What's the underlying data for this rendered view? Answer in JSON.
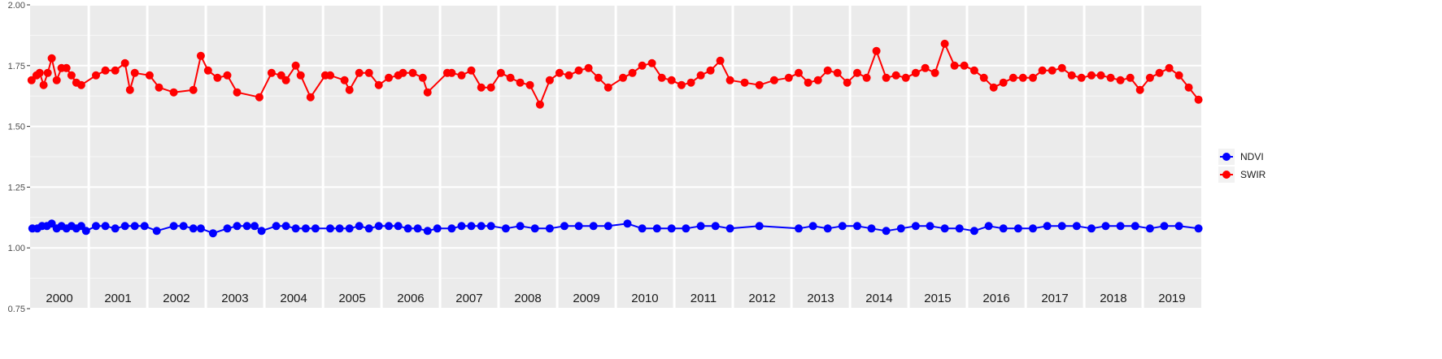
{
  "chart_data": {
    "type": "line",
    "title": "",
    "xlabel": "",
    "ylabel": "",
    "ylim": [
      0.75,
      2.0
    ],
    "yticks": [
      0.75,
      1.0,
      1.25,
      1.5,
      1.75,
      2.0
    ],
    "ytick_labels": [
      "0.75",
      "1.00",
      "1.25",
      "1.50",
      "1.75",
      "2.00"
    ],
    "grid": true,
    "legend_position": "right",
    "x_axis": "date by year",
    "years": [
      "2000",
      "2001",
      "2002",
      "2003",
      "2004",
      "2005",
      "2006",
      "2007",
      "2008",
      "2009",
      "2010",
      "2011",
      "2012",
      "2013",
      "2014",
      "2015",
      "2016",
      "2017",
      "2018",
      "2019"
    ],
    "series": [
      {
        "name": "NDVI",
        "color": "#0000ff",
        "points": [
          [
            "2000-01-15",
            1.08
          ],
          [
            "2000-02-15",
            1.08
          ],
          [
            "2000-03-15",
            1.09
          ],
          [
            "2000-04-15",
            1.09
          ],
          [
            "2000-05-15",
            1.1
          ],
          [
            "2000-06-15",
            1.08
          ],
          [
            "2000-07-15",
            1.09
          ],
          [
            "2000-08-15",
            1.08
          ],
          [
            "2000-09-15",
            1.09
          ],
          [
            "2000-10-15",
            1.08
          ],
          [
            "2000-11-15",
            1.09
          ],
          [
            "2000-12-15",
            1.07
          ],
          [
            "2001-02-15",
            1.09
          ],
          [
            "2001-04-15",
            1.09
          ],
          [
            "2001-06-15",
            1.08
          ],
          [
            "2001-08-15",
            1.09
          ],
          [
            "2001-10-15",
            1.09
          ],
          [
            "2001-12-15",
            1.09
          ],
          [
            "2002-03-01",
            1.07
          ],
          [
            "2002-06-15",
            1.09
          ],
          [
            "2002-08-15",
            1.09
          ],
          [
            "2002-10-15",
            1.08
          ],
          [
            "2002-12-01",
            1.08
          ],
          [
            "2003-02-15",
            1.06
          ],
          [
            "2003-05-15",
            1.08
          ],
          [
            "2003-07-15",
            1.09
          ],
          [
            "2003-09-15",
            1.09
          ],
          [
            "2003-11-01",
            1.09
          ],
          [
            "2003-12-15",
            1.07
          ],
          [
            "2004-03-15",
            1.09
          ],
          [
            "2004-05-15",
            1.09
          ],
          [
            "2004-07-15",
            1.08
          ],
          [
            "2004-09-15",
            1.08
          ],
          [
            "2004-11-15",
            1.08
          ],
          [
            "2005-02-15",
            1.08
          ],
          [
            "2005-04-15",
            1.08
          ],
          [
            "2005-06-15",
            1.08
          ],
          [
            "2005-08-15",
            1.09
          ],
          [
            "2005-10-15",
            1.08
          ],
          [
            "2005-12-15",
            1.09
          ],
          [
            "2006-02-15",
            1.09
          ],
          [
            "2006-04-15",
            1.09
          ],
          [
            "2006-06-15",
            1.08
          ],
          [
            "2006-08-15",
            1.08
          ],
          [
            "2006-10-15",
            1.07
          ],
          [
            "2006-12-15",
            1.08
          ],
          [
            "2007-03-15",
            1.08
          ],
          [
            "2007-05-15",
            1.09
          ],
          [
            "2007-07-15",
            1.09
          ],
          [
            "2007-09-15",
            1.09
          ],
          [
            "2007-11-15",
            1.09
          ],
          [
            "2008-02-15",
            1.08
          ],
          [
            "2008-05-15",
            1.09
          ],
          [
            "2008-08-15",
            1.08
          ],
          [
            "2008-11-15",
            1.08
          ],
          [
            "2009-02-15",
            1.09
          ],
          [
            "2009-05-15",
            1.09
          ],
          [
            "2009-08-15",
            1.09
          ],
          [
            "2009-11-15",
            1.09
          ],
          [
            "2010-03-15",
            1.1
          ],
          [
            "2010-06-15",
            1.08
          ],
          [
            "2010-09-15",
            1.08
          ],
          [
            "2010-12-15",
            1.08
          ],
          [
            "2011-03-15",
            1.08
          ],
          [
            "2011-06-15",
            1.09
          ],
          [
            "2011-09-15",
            1.09
          ],
          [
            "2011-12-15",
            1.08
          ],
          [
            "2012-06-15",
            1.09
          ],
          [
            "2013-02-15",
            1.08
          ],
          [
            "2013-05-15",
            1.09
          ],
          [
            "2013-08-15",
            1.08
          ],
          [
            "2013-11-15",
            1.09
          ],
          [
            "2014-02-15",
            1.09
          ],
          [
            "2014-05-15",
            1.08
          ],
          [
            "2014-08-15",
            1.07
          ],
          [
            "2014-11-15",
            1.08
          ],
          [
            "2015-02-15",
            1.09
          ],
          [
            "2015-05-15",
            1.09
          ],
          [
            "2015-08-15",
            1.08
          ],
          [
            "2015-11-15",
            1.08
          ],
          [
            "2016-02-15",
            1.07
          ],
          [
            "2016-05-15",
            1.09
          ],
          [
            "2016-08-15",
            1.08
          ],
          [
            "2016-11-15",
            1.08
          ],
          [
            "2017-02-15",
            1.08
          ],
          [
            "2017-05-15",
            1.09
          ],
          [
            "2017-08-15",
            1.09
          ],
          [
            "2017-11-15",
            1.09
          ],
          [
            "2018-02-15",
            1.08
          ],
          [
            "2018-05-15",
            1.09
          ],
          [
            "2018-08-15",
            1.09
          ],
          [
            "2018-11-15",
            1.09
          ],
          [
            "2019-02-15",
            1.08
          ],
          [
            "2019-05-15",
            1.09
          ],
          [
            "2019-08-15",
            1.09
          ],
          [
            "2019-12-15",
            1.08
          ]
        ]
      },
      {
        "name": "SWIR",
        "color": "#ff0000",
        "points": [
          [
            "2000-01-10",
            1.69
          ],
          [
            "2000-02-10",
            1.71
          ],
          [
            "2000-03-01",
            1.72
          ],
          [
            "2000-03-25",
            1.67
          ],
          [
            "2000-04-20",
            1.72
          ],
          [
            "2000-05-15",
            1.78
          ],
          [
            "2000-06-15",
            1.69
          ],
          [
            "2000-07-15",
            1.74
          ],
          [
            "2000-08-15",
            1.74
          ],
          [
            "2000-09-15",
            1.71
          ],
          [
            "2000-10-15",
            1.68
          ],
          [
            "2000-11-15",
            1.67
          ],
          [
            "2001-02-15",
            1.71
          ],
          [
            "2001-04-15",
            1.73
          ],
          [
            "2001-06-15",
            1.73
          ],
          [
            "2001-08-15",
            1.76
          ],
          [
            "2001-09-15",
            1.65
          ],
          [
            "2001-10-15",
            1.72
          ],
          [
            "2002-01-15",
            1.71
          ],
          [
            "2002-03-15",
            1.66
          ],
          [
            "2002-06-15",
            1.64
          ],
          [
            "2002-10-15",
            1.65
          ],
          [
            "2002-12-01",
            1.79
          ],
          [
            "2003-01-15",
            1.73
          ],
          [
            "2003-03-15",
            1.7
          ],
          [
            "2003-05-15",
            1.71
          ],
          [
            "2003-07-15",
            1.64
          ],
          [
            "2003-12-01",
            1.62
          ],
          [
            "2004-02-15",
            1.72
          ],
          [
            "2004-04-15",
            1.71
          ],
          [
            "2004-05-15",
            1.69
          ],
          [
            "2004-07-15",
            1.75
          ],
          [
            "2004-08-15",
            1.71
          ],
          [
            "2004-10-15",
            1.62
          ],
          [
            "2005-01-15",
            1.71
          ],
          [
            "2005-02-15",
            1.71
          ],
          [
            "2005-05-15",
            1.69
          ],
          [
            "2005-06-15",
            1.65
          ],
          [
            "2005-08-15",
            1.72
          ],
          [
            "2005-10-15",
            1.72
          ],
          [
            "2005-12-15",
            1.67
          ],
          [
            "2006-02-15",
            1.7
          ],
          [
            "2006-04-15",
            1.71
          ],
          [
            "2006-05-15",
            1.72
          ],
          [
            "2006-07-15",
            1.72
          ],
          [
            "2006-09-15",
            1.7
          ],
          [
            "2006-10-15",
            1.64
          ],
          [
            "2007-02-15",
            1.72
          ],
          [
            "2007-03-15",
            1.72
          ],
          [
            "2007-05-15",
            1.71
          ],
          [
            "2007-07-15",
            1.73
          ],
          [
            "2007-09-15",
            1.66
          ],
          [
            "2007-11-15",
            1.66
          ],
          [
            "2008-01-15",
            1.72
          ],
          [
            "2008-03-15",
            1.7
          ],
          [
            "2008-05-15",
            1.68
          ],
          [
            "2008-07-15",
            1.67
          ],
          [
            "2008-09-15",
            1.59
          ],
          [
            "2008-11-15",
            1.69
          ],
          [
            "2009-01-15",
            1.72
          ],
          [
            "2009-03-15",
            1.71
          ],
          [
            "2009-05-15",
            1.73
          ],
          [
            "2009-07-15",
            1.74
          ],
          [
            "2009-09-15",
            1.7
          ],
          [
            "2009-11-15",
            1.66
          ],
          [
            "2010-02-15",
            1.7
          ],
          [
            "2010-04-15",
            1.72
          ],
          [
            "2010-06-15",
            1.75
          ],
          [
            "2010-08-15",
            1.76
          ],
          [
            "2010-10-15",
            1.7
          ],
          [
            "2010-12-15",
            1.69
          ],
          [
            "2011-02-15",
            1.67
          ],
          [
            "2011-04-15",
            1.68
          ],
          [
            "2011-06-15",
            1.71
          ],
          [
            "2011-08-15",
            1.73
          ],
          [
            "2011-10-15",
            1.77
          ],
          [
            "2011-12-15",
            1.69
          ],
          [
            "2012-03-15",
            1.68
          ],
          [
            "2012-06-15",
            1.67
          ],
          [
            "2012-09-15",
            1.69
          ],
          [
            "2012-12-15",
            1.7
          ],
          [
            "2013-02-15",
            1.72
          ],
          [
            "2013-04-15",
            1.68
          ],
          [
            "2013-06-15",
            1.69
          ],
          [
            "2013-08-15",
            1.73
          ],
          [
            "2013-10-15",
            1.72
          ],
          [
            "2013-12-15",
            1.68
          ],
          [
            "2014-02-15",
            1.72
          ],
          [
            "2014-04-15",
            1.7
          ],
          [
            "2014-06-15",
            1.81
          ],
          [
            "2014-08-15",
            1.7
          ],
          [
            "2014-10-15",
            1.71
          ],
          [
            "2014-12-15",
            1.7
          ],
          [
            "2015-02-15",
            1.72
          ],
          [
            "2015-04-15",
            1.74
          ],
          [
            "2015-06-15",
            1.72
          ],
          [
            "2015-08-15",
            1.84
          ],
          [
            "2015-10-15",
            1.75
          ],
          [
            "2015-12-15",
            1.75
          ],
          [
            "2016-02-15",
            1.73
          ],
          [
            "2016-04-15",
            1.7
          ],
          [
            "2016-06-15",
            1.66
          ],
          [
            "2016-08-15",
            1.68
          ],
          [
            "2016-10-15",
            1.7
          ],
          [
            "2016-12-15",
            1.7
          ],
          [
            "2017-02-15",
            1.7
          ],
          [
            "2017-04-15",
            1.73
          ],
          [
            "2017-06-15",
            1.73
          ],
          [
            "2017-08-15",
            1.74
          ],
          [
            "2017-10-15",
            1.71
          ],
          [
            "2017-12-15",
            1.7
          ],
          [
            "2018-02-15",
            1.71
          ],
          [
            "2018-04-15",
            1.71
          ],
          [
            "2018-06-15",
            1.7
          ],
          [
            "2018-08-15",
            1.69
          ],
          [
            "2018-10-15",
            1.7
          ],
          [
            "2018-12-15",
            1.65
          ],
          [
            "2019-02-15",
            1.7
          ],
          [
            "2019-04-15",
            1.72
          ],
          [
            "2019-06-15",
            1.74
          ],
          [
            "2019-08-15",
            1.71
          ],
          [
            "2019-10-15",
            1.66
          ],
          [
            "2019-12-15",
            1.61
          ]
        ]
      }
    ]
  }
}
